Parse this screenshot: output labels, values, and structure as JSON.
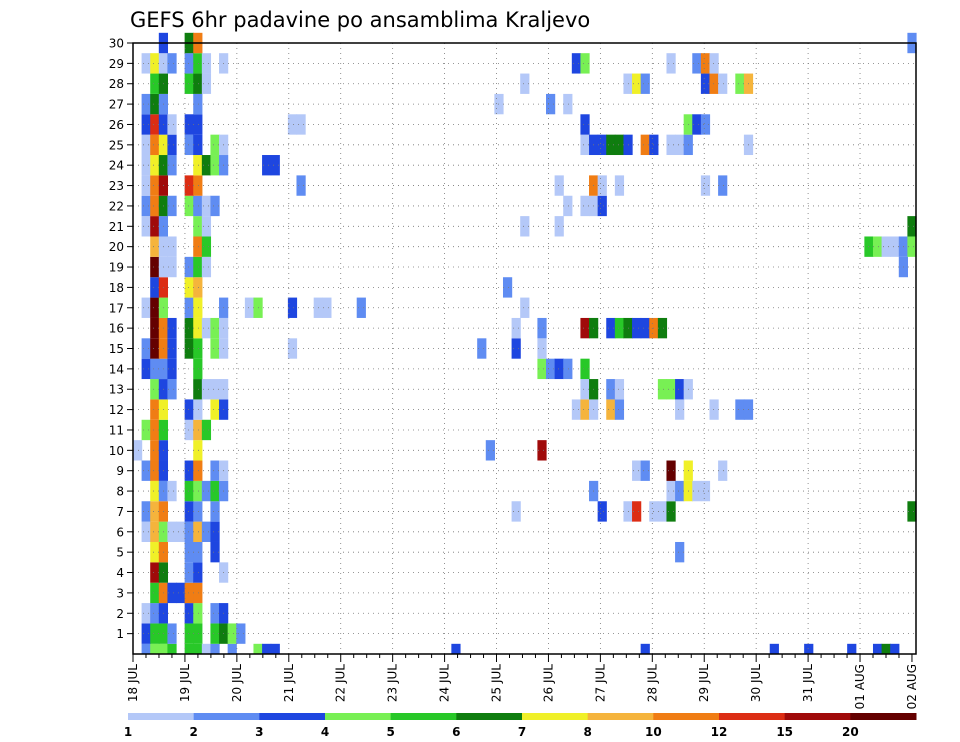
{
  "chart_data": {
    "type": "heatmap",
    "title": "GEFS 6hr padavine po ansamblima Kraljevo",
    "y_ticks": [
      "1",
      "2",
      "3",
      "4",
      "5",
      "6",
      "7",
      "8",
      "9",
      "10",
      "11",
      "12",
      "13",
      "14",
      "15",
      "16",
      "17",
      "18",
      "19",
      "20",
      "21",
      "22",
      "23",
      "24",
      "25",
      "26",
      "27",
      "28",
      "29",
      "30"
    ],
    "x_ticks": [
      "18 JUL",
      "19 JUL",
      "20 JUL",
      "21 JUL",
      "22 JUL",
      "23 JUL",
      "24 JUL",
      "25 JUL",
      "26 JUL",
      "27 JUL",
      "28 JUL",
      "29 JUL",
      "30 JUL",
      "31 JUL",
      "01 AUG",
      "02 AUG"
    ],
    "levels": [
      "1",
      "2",
      "3",
      "4",
      "5",
      "6",
      "7",
      "8",
      "10",
      "12",
      "15",
      "20"
    ],
    "colors": [
      "#b4c8f8",
      "#5f8cf2",
      "#1e46e0",
      "#78f054",
      "#28c828",
      "#0f7d0f",
      "#f0f028",
      "#f5b43c",
      "#f07d14",
      "#dc2d14",
      "#a00a0a",
      "#640000"
    ],
    "value_scale": "class index 1-13: 1 = 1-2, 2 = 2-3, 3 = 3-4, 4 = 4-5, 5 = 5-6, 6 = 6-7, 7 = 7-8, 8 = 8-10, 9 = 10-12, 10 = 12-15, 11 = 15-20, 12 = 20+",
    "x_range": [
      "18 JUL",
      "02 AUG"
    ],
    "y_range": [
      0,
      30
    ],
    "grid": true,
    "cells": [
      [
        1,
        0,
        2
      ],
      [
        2,
        0,
        4
      ],
      [
        3,
        0,
        4
      ],
      [
        4,
        0,
        5
      ],
      [
        6,
        0,
        5
      ],
      [
        7,
        0,
        5
      ],
      [
        8,
        0,
        1
      ],
      [
        9,
        0,
        2
      ],
      [
        11,
        0,
        2
      ],
      [
        14,
        0,
        4
      ],
      [
        15,
        0,
        3
      ],
      [
        16,
        0,
        3
      ],
      [
        37,
        0,
        3
      ],
      [
        59,
        0,
        3
      ],
      [
        74,
        0,
        3
      ],
      [
        78,
        0,
        3
      ],
      [
        83,
        0,
        3
      ],
      [
        86,
        0,
        3
      ],
      [
        87,
        0,
        6
      ],
      [
        88,
        0,
        3
      ],
      [
        1,
        1,
        3
      ],
      [
        2,
        1,
        5
      ],
      [
        3,
        1,
        5
      ],
      [
        4,
        1,
        2
      ],
      [
        6,
        1,
        5
      ],
      [
        7,
        1,
        5
      ],
      [
        9,
        1,
        5
      ],
      [
        10,
        1,
        6
      ],
      [
        11,
        1,
        4
      ],
      [
        12,
        1,
        2
      ],
      [
        1,
        2,
        1
      ],
      [
        2,
        2,
        2
      ],
      [
        3,
        2,
        3
      ],
      [
        6,
        2,
        3
      ],
      [
        7,
        2,
        4
      ],
      [
        9,
        2,
        2
      ],
      [
        10,
        2,
        3
      ],
      [
        2,
        3,
        5
      ],
      [
        3,
        3,
        9
      ],
      [
        4,
        3,
        3
      ],
      [
        5,
        3,
        3
      ],
      [
        6,
        3,
        9
      ],
      [
        7,
        3,
        9
      ],
      [
        2,
        4,
        11
      ],
      [
        3,
        4,
        6
      ],
      [
        6,
        4,
        2
      ],
      [
        7,
        4,
        3
      ],
      [
        10,
        4,
        1
      ],
      [
        2,
        5,
        7
      ],
      [
        3,
        5,
        9
      ],
      [
        6,
        5,
        2
      ],
      [
        7,
        5,
        2
      ],
      [
        9,
        5,
        3
      ],
      [
        63,
        5,
        2
      ],
      [
        1,
        6,
        1
      ],
      [
        2,
        6,
        8
      ],
      [
        3,
        6,
        4
      ],
      [
        4,
        6,
        1
      ],
      [
        5,
        6,
        1
      ],
      [
        6,
        6,
        2
      ],
      [
        7,
        6,
        8
      ],
      [
        8,
        6,
        2
      ],
      [
        9,
        6,
        3
      ],
      [
        1,
        7,
        2
      ],
      [
        2,
        7,
        8
      ],
      [
        3,
        7,
        9
      ],
      [
        6,
        7,
        3
      ],
      [
        7,
        7,
        2
      ],
      [
        9,
        7,
        2
      ],
      [
        44,
        7,
        1
      ],
      [
        54,
        7,
        3
      ],
      [
        57,
        7,
        1
      ],
      [
        58,
        7,
        10
      ],
      [
        60,
        7,
        1
      ],
      [
        61,
        7,
        1
      ],
      [
        62,
        7,
        6
      ],
      [
        90,
        7,
        6
      ],
      [
        2,
        8,
        7
      ],
      [
        3,
        8,
        2
      ],
      [
        4,
        8,
        1
      ],
      [
        6,
        8,
        5
      ],
      [
        7,
        8,
        4
      ],
      [
        8,
        8,
        2
      ],
      [
        9,
        8,
        5
      ],
      [
        10,
        8,
        2
      ],
      [
        53,
        8,
        2
      ],
      [
        62,
        8,
        1
      ],
      [
        63,
        8,
        2
      ],
      [
        64,
        8,
        7
      ],
      [
        65,
        8,
        1
      ],
      [
        66,
        8,
        1
      ],
      [
        1,
        9,
        2
      ],
      [
        2,
        9,
        9
      ],
      [
        3,
        9,
        3
      ],
      [
        6,
        9,
        3
      ],
      [
        7,
        9,
        9
      ],
      [
        9,
        9,
        2
      ],
      [
        10,
        9,
        1
      ],
      [
        58,
        9,
        1
      ],
      [
        59,
        9,
        2
      ],
      [
        62,
        9,
        12
      ],
      [
        64,
        9,
        7
      ],
      [
        68,
        9,
        1
      ],
      [
        0,
        10,
        1
      ],
      [
        2,
        10,
        9
      ],
      [
        3,
        10,
        3
      ],
      [
        7,
        10,
        7
      ],
      [
        41,
        10,
        2
      ],
      [
        47,
        10,
        11
      ],
      [
        1,
        11,
        4
      ],
      [
        2,
        11,
        9
      ],
      [
        3,
        11,
        5
      ],
      [
        6,
        11,
        1
      ],
      [
        7,
        11,
        8
      ],
      [
        8,
        11,
        5
      ],
      [
        2,
        12,
        9
      ],
      [
        3,
        12,
        7
      ],
      [
        6,
        12,
        3
      ],
      [
        7,
        12,
        1
      ],
      [
        9,
        12,
        7
      ],
      [
        10,
        12,
        3
      ],
      [
        51,
        12,
        1
      ],
      [
        52,
        12,
        8
      ],
      [
        53,
        12,
        1
      ],
      [
        55,
        12,
        8
      ],
      [
        56,
        12,
        2
      ],
      [
        63,
        12,
        1
      ],
      [
        67,
        12,
        1
      ],
      [
        70,
        12,
        2
      ],
      [
        71,
        12,
        2
      ],
      [
        2,
        13,
        4
      ],
      [
        3,
        13,
        3
      ],
      [
        4,
        13,
        2
      ],
      [
        7,
        13,
        6
      ],
      [
        8,
        13,
        1
      ],
      [
        9,
        13,
        1
      ],
      [
        10,
        13,
        1
      ],
      [
        52,
        13,
        1
      ],
      [
        53,
        13,
        6
      ],
      [
        55,
        13,
        2
      ],
      [
        56,
        13,
        1
      ],
      [
        61,
        13,
        4
      ],
      [
        62,
        13,
        4
      ],
      [
        63,
        13,
        3
      ],
      [
        64,
        13,
        1
      ],
      [
        1,
        14,
        3
      ],
      [
        2,
        14,
        2
      ],
      [
        3,
        14,
        2
      ],
      [
        4,
        14,
        3
      ],
      [
        7,
        14,
        5
      ],
      [
        47,
        14,
        4
      ],
      [
        48,
        14,
        2
      ],
      [
        49,
        14,
        3
      ],
      [
        50,
        14,
        2
      ],
      [
        52,
        14,
        5
      ],
      [
        1,
        15,
        2
      ],
      [
        2,
        15,
        12
      ],
      [
        3,
        15,
        9
      ],
      [
        4,
        15,
        3
      ],
      [
        6,
        15,
        6
      ],
      [
        7,
        15,
        5
      ],
      [
        9,
        15,
        4
      ],
      [
        10,
        15,
        1
      ],
      [
        18,
        15,
        1
      ],
      [
        40,
        15,
        2
      ],
      [
        44,
        15,
        3
      ],
      [
        47,
        15,
        1
      ],
      [
        2,
        16,
        12
      ],
      [
        3,
        16,
        9
      ],
      [
        4,
        16,
        3
      ],
      [
        6,
        16,
        6
      ],
      [
        7,
        16,
        7
      ],
      [
        8,
        16,
        1
      ],
      [
        9,
        16,
        4
      ],
      [
        10,
        16,
        1
      ],
      [
        44,
        16,
        1
      ],
      [
        47,
        16,
        2
      ],
      [
        52,
        16,
        11
      ],
      [
        53,
        16,
        6
      ],
      [
        55,
        16,
        3
      ],
      [
        56,
        16,
        5
      ],
      [
        57,
        16,
        6
      ],
      [
        58,
        16,
        3
      ],
      [
        59,
        16,
        3
      ],
      [
        60,
        16,
        9
      ],
      [
        61,
        16,
        6
      ],
      [
        1,
        17,
        1
      ],
      [
        2,
        17,
        12
      ],
      [
        3,
        17,
        4
      ],
      [
        6,
        17,
        2
      ],
      [
        7,
        17,
        7
      ],
      [
        10,
        17,
        2
      ],
      [
        13,
        17,
        1
      ],
      [
        14,
        17,
        4
      ],
      [
        18,
        17,
        3
      ],
      [
        21,
        17,
        1
      ],
      [
        22,
        17,
        1
      ],
      [
        26,
        17,
        2
      ],
      [
        45,
        17,
        1
      ],
      [
        2,
        18,
        3
      ],
      [
        3,
        18,
        10
      ],
      [
        6,
        18,
        7
      ],
      [
        7,
        18,
        8
      ],
      [
        43,
        18,
        2
      ],
      [
        2,
        19,
        12
      ],
      [
        3,
        19,
        1
      ],
      [
        4,
        19,
        1
      ],
      [
        6,
        19,
        2
      ],
      [
        7,
        19,
        5
      ],
      [
        8,
        19,
        1
      ],
      [
        89,
        19,
        2
      ],
      [
        2,
        20,
        8
      ],
      [
        3,
        20,
        1
      ],
      [
        4,
        20,
        1
      ],
      [
        7,
        20,
        9
      ],
      [
        8,
        20,
        5
      ],
      [
        85,
        20,
        5
      ],
      [
        86,
        20,
        4
      ],
      [
        87,
        20,
        1
      ],
      [
        88,
        20,
        1
      ],
      [
        89,
        20,
        2
      ],
      [
        90,
        20,
        4
      ],
      [
        1,
        21,
        1
      ],
      [
        2,
        21,
        11
      ],
      [
        3,
        21,
        2
      ],
      [
        7,
        21,
        4
      ],
      [
        8,
        21,
        1
      ],
      [
        45,
        21,
        1
      ],
      [
        49,
        21,
        1
      ],
      [
        90,
        21,
        6
      ],
      [
        1,
        22,
        2
      ],
      [
        2,
        22,
        9
      ],
      [
        3,
        22,
        6
      ],
      [
        4,
        22,
        2
      ],
      [
        6,
        22,
        4
      ],
      [
        7,
        22,
        2
      ],
      [
        8,
        22,
        1
      ],
      [
        9,
        22,
        2
      ],
      [
        50,
        22,
        1
      ],
      [
        52,
        22,
        1
      ],
      [
        53,
        22,
        1
      ],
      [
        54,
        22,
        3
      ],
      [
        1,
        23,
        1
      ],
      [
        2,
        23,
        9
      ],
      [
        3,
        23,
        11
      ],
      [
        6,
        23,
        10
      ],
      [
        7,
        23,
        9
      ],
      [
        19,
        23,
        2
      ],
      [
        49,
        23,
        1
      ],
      [
        53,
        23,
        9
      ],
      [
        54,
        23,
        1
      ],
      [
        56,
        23,
        1
      ],
      [
        66,
        23,
        1
      ],
      [
        68,
        23,
        2
      ],
      [
        1,
        24,
        1
      ],
      [
        2,
        24,
        7
      ],
      [
        3,
        24,
        6
      ],
      [
        4,
        24,
        2
      ],
      [
        7,
        24,
        7
      ],
      [
        8,
        24,
        6
      ],
      [
        9,
        24,
        4
      ],
      [
        10,
        24,
        2
      ],
      [
        15,
        24,
        3
      ],
      [
        16,
        24,
        3
      ],
      [
        1,
        25,
        1
      ],
      [
        2,
        25,
        9
      ],
      [
        3,
        25,
        7
      ],
      [
        4,
        25,
        3
      ],
      [
        6,
        25,
        2
      ],
      [
        7,
        25,
        3
      ],
      [
        9,
        25,
        4
      ],
      [
        10,
        25,
        1
      ],
      [
        52,
        25,
        1
      ],
      [
        53,
        25,
        3
      ],
      [
        54,
        25,
        3
      ],
      [
        55,
        25,
        6
      ],
      [
        56,
        25,
        6
      ],
      [
        57,
        25,
        3
      ],
      [
        59,
        25,
        9
      ],
      [
        60,
        25,
        3
      ],
      [
        62,
        25,
        1
      ],
      [
        63,
        25,
        1
      ],
      [
        64,
        25,
        2
      ],
      [
        71,
        25,
        1
      ],
      [
        1,
        26,
        3
      ],
      [
        2,
        26,
        10
      ],
      [
        3,
        26,
        3
      ],
      [
        4,
        26,
        1
      ],
      [
        6,
        26,
        3
      ],
      [
        7,
        26,
        3
      ],
      [
        18,
        26,
        1
      ],
      [
        19,
        26,
        1
      ],
      [
        52,
        26,
        3
      ],
      [
        64,
        26,
        4
      ],
      [
        65,
        26,
        3
      ],
      [
        66,
        26,
        2
      ],
      [
        1,
        27,
        2
      ],
      [
        2,
        27,
        6
      ],
      [
        3,
        27,
        2
      ],
      [
        7,
        27,
        2
      ],
      [
        42,
        27,
        1
      ],
      [
        48,
        27,
        2
      ],
      [
        50,
        27,
        1
      ],
      [
        2,
        28,
        5
      ],
      [
        3,
        28,
        6
      ],
      [
        6,
        28,
        5
      ],
      [
        7,
        28,
        6
      ],
      [
        8,
        28,
        1
      ],
      [
        45,
        28,
        1
      ],
      [
        57,
        28,
        1
      ],
      [
        58,
        28,
        7
      ],
      [
        59,
        28,
        2
      ],
      [
        66,
        28,
        3
      ],
      [
        67,
        28,
        9
      ],
      [
        68,
        28,
        1
      ],
      [
        70,
        28,
        4
      ],
      [
        71,
        28,
        8
      ],
      [
        1,
        29,
        1
      ],
      [
        2,
        29,
        7
      ],
      [
        3,
        29,
        1
      ],
      [
        4,
        29,
        2
      ],
      [
        6,
        29,
        2
      ],
      [
        7,
        29,
        5
      ],
      [
        8,
        29,
        1
      ],
      [
        10,
        29,
        1
      ],
      [
        51,
        29,
        3
      ],
      [
        52,
        29,
        4
      ],
      [
        62,
        29,
        1
      ],
      [
        65,
        29,
        2
      ],
      [
        66,
        29,
        9
      ],
      [
        67,
        29,
        1
      ],
      [
        3,
        30,
        3
      ],
      [
        6,
        30,
        6
      ],
      [
        7,
        30,
        9
      ],
      [
        90,
        30,
        2
      ]
    ]
  }
}
